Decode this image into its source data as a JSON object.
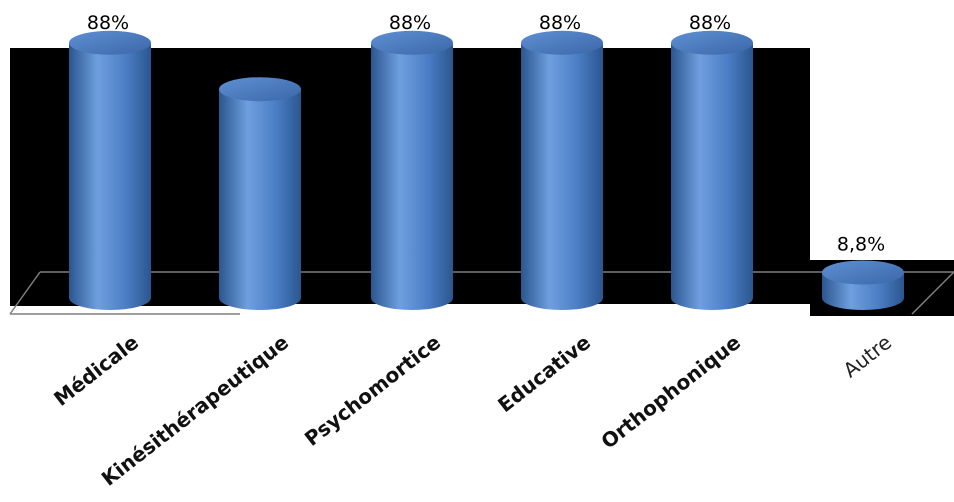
{
  "chart_data": {
    "type": "bar",
    "title": "",
    "xlabel": "",
    "ylabel": "",
    "categories": [
      "Médicale",
      "Kinésithérapeutique",
      "Psychomortice",
      "Educative",
      "Orthophonique",
      "Autre"
    ],
    "series": [
      {
        "values": [
          88,
          72,
          88,
          88,
          88,
          8.8
        ],
        "data_labels": [
          "88%",
          "",
          "88%",
          "88%",
          "88%",
          "8,8%"
        ]
      }
    ],
    "ylim": [
      0,
      100
    ],
    "grid": false,
    "legend": "none",
    "bar_shape": "cylinder-3d",
    "colors": {
      "bar_top": "#4a7dc4",
      "bar_mid": "#6f9fdf",
      "bar_dark": "#2b568f",
      "background": "#000000",
      "floor_line": "#7f7f7f"
    }
  }
}
